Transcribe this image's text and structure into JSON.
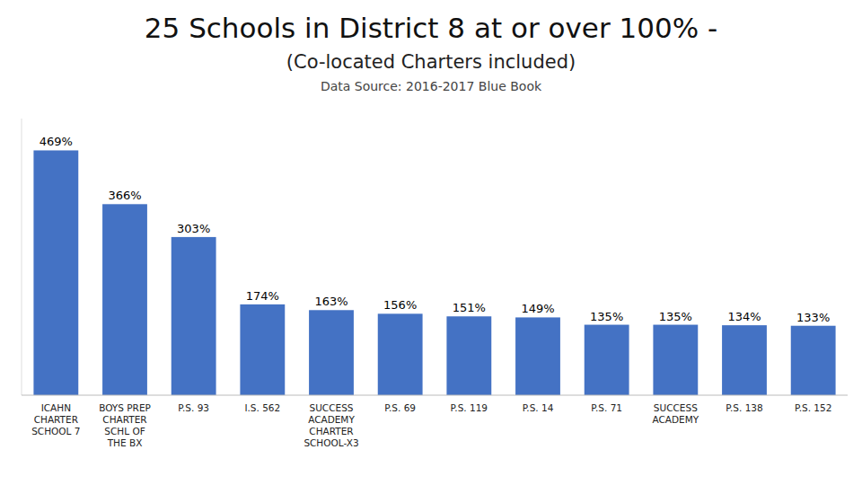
{
  "chart_data": {
    "type": "bar",
    "title": "25 Schools in District 8 at or over 100% -",
    "subtitle": "(Co-located Charters included)",
    "annotations": [
      "Data Source: 2016-2017 Blue Book"
    ],
    "categories": [
      "ICAHN\nCHARTER\nSCHOOL 7",
      "BOYS PREP\nCHARTER\nSCHL OF\nTHE BX",
      "P.S. 93",
      "I.S. 562",
      "SUCCESS\nACADEMY\nCHARTER\nSCHOOL-X3",
      "P.S. 69",
      "P.S. 119",
      "P.S. 14",
      "P.S. 71",
      "SUCCESS\nACADEMY",
      "P.S. 138",
      "P.S. 152"
    ],
    "values": [
      469,
      366,
      303,
      174,
      163,
      156,
      151,
      149,
      135,
      135,
      134,
      133
    ],
    "value_labels": [
      "469%",
      "366%",
      "303%",
      "174%",
      "163%",
      "156%",
      "151%",
      "149%",
      "135%",
      "135%",
      "134%",
      "133%"
    ],
    "color": "#4472C4",
    "ylim": [
      0,
      530
    ],
    "grid": false,
    "data_labels": true,
    "tick_labels": "x"
  }
}
